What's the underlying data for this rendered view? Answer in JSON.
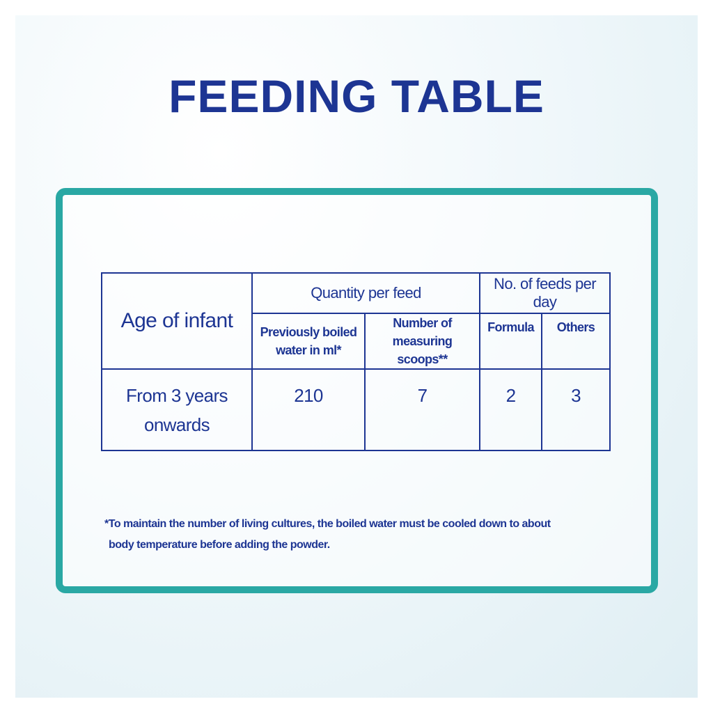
{
  "title": "FEEDING TABLE",
  "table": {
    "header": {
      "age": "Age of infant",
      "quantity": "Quantity per feed",
      "feeds": "No. of feeds per day",
      "water": "Previously boiled water in ml*",
      "scoops": "Number of measuring scoops**",
      "formula": "Formula",
      "others": "Others"
    },
    "rows": [
      [
        "From  3 years onwards",
        210,
        7,
        2,
        3
      ]
    ]
  },
  "footnote": [
    "*To maintain the number of living cultures, the boiled water must be cooled down to about",
    "body temperature  before adding the powder."
  ]
}
